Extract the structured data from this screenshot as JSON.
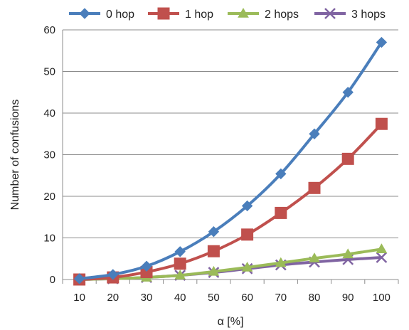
{
  "chart_data": {
    "type": "line",
    "title": "",
    "xlabel": "α [%]",
    "ylabel": "Number of confusions",
    "categories": [
      "10",
      "20",
      "30",
      "40",
      "50",
      "60",
      "70",
      "80",
      "90",
      "100"
    ],
    "ylim": [
      0,
      60
    ],
    "yticks": [
      "0",
      "10",
      "20",
      "30",
      "40",
      "50",
      "60"
    ],
    "grid": "horizontal",
    "legend_position": "top",
    "series": [
      {
        "name": "0 hop",
        "color": "#4a7ebb",
        "marker": "diamond",
        "values": [
          0.2,
          1.2,
          3.2,
          6.7,
          11.5,
          17.7,
          25.4,
          35.0,
          45.0,
          57.0
        ]
      },
      {
        "name": "1 hop",
        "color": "#c0504d",
        "marker": "square",
        "values": [
          0.0,
          0.5,
          1.8,
          3.8,
          6.8,
          10.8,
          16.0,
          22.0,
          29.0,
          37.4
        ]
      },
      {
        "name": "2 hops",
        "color": "#9bbb59",
        "marker": "triangle",
        "values": [
          0.0,
          0.2,
          0.5,
          1.0,
          1.9,
          2.9,
          4.0,
          5.1,
          6.1,
          7.3
        ]
      },
      {
        "name": "3 hops",
        "color": "#8064a2",
        "marker": "x",
        "values": [
          0.0,
          0.2,
          0.5,
          1.0,
          1.7,
          2.6,
          3.5,
          4.2,
          4.8,
          5.3
        ]
      }
    ]
  }
}
